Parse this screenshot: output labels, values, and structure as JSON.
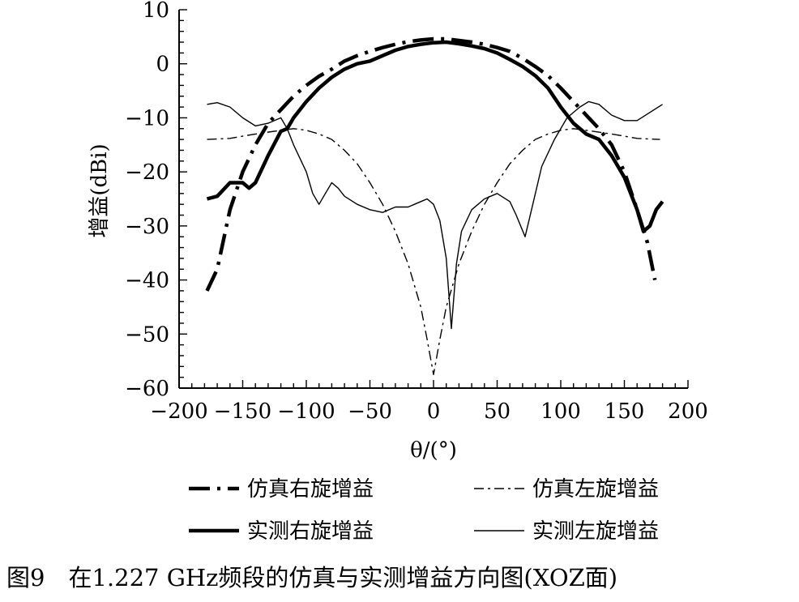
{
  "chart_data": {
    "type": "line",
    "xlabel": "θ/(°)",
    "ylabel": "增益(dBi)",
    "xlim": [
      -200,
      200
    ],
    "ylim": [
      -60,
      10
    ],
    "xticks": [
      -200,
      -150,
      -100,
      -50,
      0,
      50,
      100,
      150,
      200
    ],
    "yticks": [
      10,
      0,
      -10,
      -20,
      -30,
      -40,
      -50,
      -60
    ],
    "xtick_labels": [
      "−200",
      "−150",
      "−100",
      "−50",
      "0",
      "50",
      "100",
      "150",
      "200"
    ],
    "ytick_labels": [
      "10",
      "0",
      "−10",
      "−20",
      "−30",
      "−40",
      "−50",
      "−60"
    ],
    "legend_position": "bottom",
    "series": [
      {
        "name": "仿真右旋增益",
        "style": "thick-dash-dot",
        "points": [
          [
            -178,
            -42
          ],
          [
            -170,
            -38
          ],
          [
            -160,
            -27
          ],
          [
            -150,
            -20
          ],
          [
            -140,
            -15
          ],
          [
            -130,
            -11
          ],
          [
            -120,
            -8.5
          ],
          [
            -110,
            -6
          ],
          [
            -100,
            -4
          ],
          [
            -90,
            -2.3
          ],
          [
            -80,
            -1
          ],
          [
            -70,
            0.5
          ],
          [
            -60,
            1.5
          ],
          [
            -50,
            2.3
          ],
          [
            -40,
            3
          ],
          [
            -30,
            3.6
          ],
          [
            -20,
            4.1
          ],
          [
            -10,
            4.4
          ],
          [
            0,
            4.6
          ],
          [
            10,
            4.6
          ],
          [
            20,
            4.3
          ],
          [
            30,
            4
          ],
          [
            40,
            3.6
          ],
          [
            50,
            3
          ],
          [
            60,
            2.3
          ],
          [
            70,
            1
          ],
          [
            80,
            -0.5
          ],
          [
            90,
            -2.2
          ],
          [
            100,
            -4.5
          ],
          [
            110,
            -7
          ],
          [
            120,
            -9.5
          ],
          [
            130,
            -12
          ],
          [
            140,
            -15
          ],
          [
            150,
            -20
          ],
          [
            160,
            -27
          ],
          [
            168,
            -33
          ],
          [
            174,
            -40
          ]
        ]
      },
      {
        "name": "仿真左旋增益",
        "style": "thin-dash-dot",
        "points": [
          [
            -178,
            -14
          ],
          [
            -160,
            -13.8
          ],
          [
            -140,
            -13
          ],
          [
            -120,
            -12.3
          ],
          [
            -110,
            -12
          ],
          [
            -100,
            -12.3
          ],
          [
            -90,
            -13
          ],
          [
            -80,
            -14
          ],
          [
            -70,
            -16
          ],
          [
            -60,
            -18.5
          ],
          [
            -50,
            -22
          ],
          [
            -40,
            -26
          ],
          [
            -30,
            -31
          ],
          [
            -20,
            -37
          ],
          [
            -10,
            -45
          ],
          [
            -5,
            -51
          ],
          [
            0,
            -57.5
          ],
          [
            5,
            -51
          ],
          [
            10,
            -45
          ],
          [
            20,
            -37
          ],
          [
            30,
            -31
          ],
          [
            40,
            -26
          ],
          [
            50,
            -22
          ],
          [
            60,
            -18.5
          ],
          [
            70,
            -16
          ],
          [
            80,
            -14
          ],
          [
            90,
            -13
          ],
          [
            100,
            -12.3
          ],
          [
            110,
            -12
          ],
          [
            120,
            -12.3
          ],
          [
            140,
            -13
          ],
          [
            160,
            -13.8
          ],
          [
            178,
            -14
          ]
        ]
      },
      {
        "name": "实测右旋增益",
        "style": "thick-solid",
        "points": [
          [
            -178,
            -25
          ],
          [
            -170,
            -24.5
          ],
          [
            -160,
            -22
          ],
          [
            -150,
            -22
          ],
          [
            -145,
            -23
          ],
          [
            -140,
            -22
          ],
          [
            -130,
            -17
          ],
          [
            -120,
            -12.5
          ],
          [
            -115,
            -12
          ],
          [
            -110,
            -10
          ],
          [
            -100,
            -7
          ],
          [
            -90,
            -4.5
          ],
          [
            -80,
            -2.5
          ],
          [
            -70,
            -1
          ],
          [
            -60,
            0
          ],
          [
            -50,
            0.5
          ],
          [
            -40,
            1.5
          ],
          [
            -30,
            2.5
          ],
          [
            -20,
            3.2
          ],
          [
            -10,
            3.6
          ],
          [
            0,
            3.9
          ],
          [
            10,
            4
          ],
          [
            20,
            3.7
          ],
          [
            30,
            3.3
          ],
          [
            40,
            2.8
          ],
          [
            50,
            2
          ],
          [
            60,
            0.8
          ],
          [
            70,
            -0.5
          ],
          [
            80,
            -2.2
          ],
          [
            90,
            -4.5
          ],
          [
            100,
            -8
          ],
          [
            110,
            -11
          ],
          [
            120,
            -13
          ],
          [
            130,
            -14
          ],
          [
            140,
            -17
          ],
          [
            150,
            -21
          ],
          [
            160,
            -27
          ],
          [
            165,
            -31
          ],
          [
            170,
            -30
          ],
          [
            175,
            -27
          ],
          [
            180,
            -25.5
          ]
        ]
      },
      {
        "name": "实测左旋增益",
        "style": "thin-solid",
        "points": [
          [
            -178,
            -7.5
          ],
          [
            -170,
            -7.2
          ],
          [
            -160,
            -8
          ],
          [
            -150,
            -10
          ],
          [
            -140,
            -11.5
          ],
          [
            -130,
            -11
          ],
          [
            -120,
            -10
          ],
          [
            -115,
            -12
          ],
          [
            -110,
            -15
          ],
          [
            -100,
            -20
          ],
          [
            -95,
            -24
          ],
          [
            -90,
            -26
          ],
          [
            -85,
            -24
          ],
          [
            -80,
            -22
          ],
          [
            -75,
            -23
          ],
          [
            -70,
            -24.5
          ],
          [
            -60,
            -26
          ],
          [
            -50,
            -27
          ],
          [
            -40,
            -27.5
          ],
          [
            -30,
            -26.5
          ],
          [
            -20,
            -26.5
          ],
          [
            -15,
            -26
          ],
          [
            -10,
            -25.5
          ],
          [
            -5,
            -25
          ],
          [
            0,
            -26
          ],
          [
            5,
            -29
          ],
          [
            10,
            -36
          ],
          [
            14,
            -49
          ],
          [
            18,
            -37
          ],
          [
            22,
            -31
          ],
          [
            30,
            -27
          ],
          [
            40,
            -25
          ],
          [
            50,
            -24
          ],
          [
            60,
            -25.5
          ],
          [
            65,
            -28
          ],
          [
            72,
            -32
          ],
          [
            78,
            -26
          ],
          [
            85,
            -19
          ],
          [
            95,
            -14
          ],
          [
            105,
            -10
          ],
          [
            115,
            -8
          ],
          [
            122,
            -7
          ],
          [
            130,
            -7.5
          ],
          [
            140,
            -9.5
          ],
          [
            150,
            -10.5
          ],
          [
            160,
            -10.5
          ],
          [
            170,
            -9
          ],
          [
            180,
            -7.5
          ]
        ]
      }
    ]
  },
  "caption": "图9　在1.227 GHz频段的仿真与实测增益方向图(XOZ面)"
}
